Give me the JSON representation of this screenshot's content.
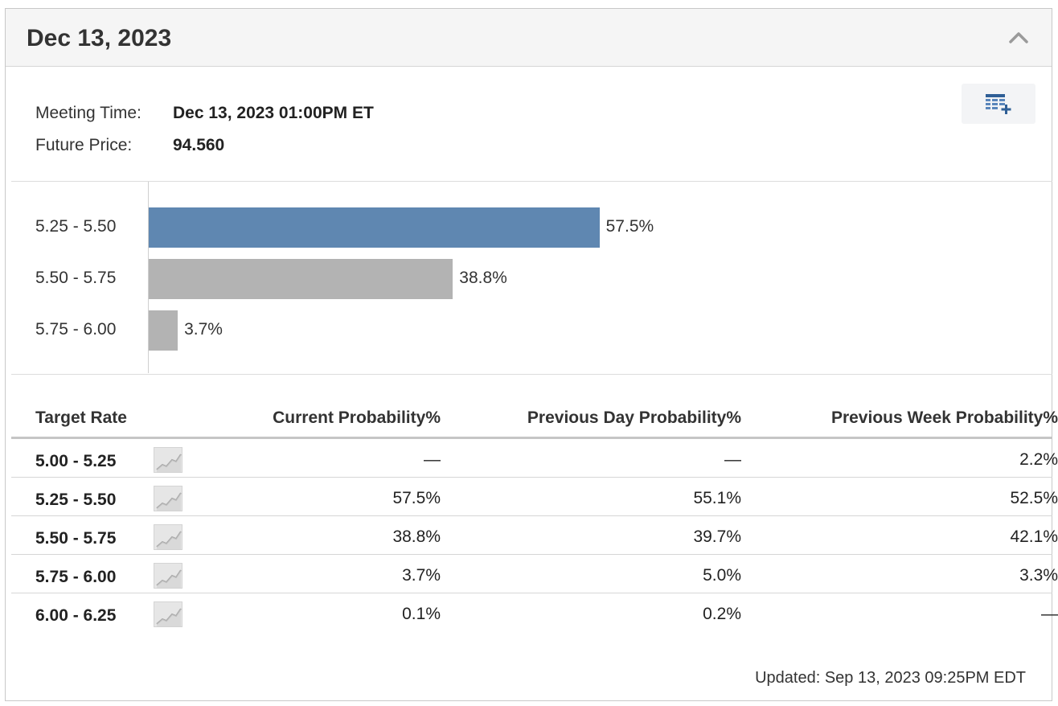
{
  "header": {
    "title": "Dec 13, 2023"
  },
  "meeting": {
    "time_label": "Meeting Time:",
    "time_value": "Dec 13, 2023 01:00PM ET",
    "price_label": "Future Price:",
    "price_value": "94.560"
  },
  "chart_data": {
    "type": "bar",
    "orientation": "horizontal",
    "categories": [
      "5.25 - 5.50",
      "5.50 - 5.75",
      "5.75 - 6.00"
    ],
    "values": [
      57.5,
      38.8,
      3.7
    ],
    "value_labels": [
      "57.5%",
      "38.8%",
      "3.7%"
    ],
    "xlim": [
      0,
      100
    ],
    "colors": [
      "#5f87b1",
      "#b3b3b3",
      "#b3b3b3"
    ],
    "title": "",
    "xlabel": "",
    "ylabel": ""
  },
  "table": {
    "headers": [
      "Target Rate",
      "Current Probability%",
      "Previous Day Probability%",
      "Previous Week Probability%"
    ],
    "rows": [
      {
        "rate": "5.00 - 5.25",
        "current": "—",
        "prev_day": "—",
        "prev_week": "2.2%"
      },
      {
        "rate": "5.25 - 5.50",
        "current": "57.5%",
        "prev_day": "55.1%",
        "prev_week": "52.5%"
      },
      {
        "rate": "5.50 - 5.75",
        "current": "38.8%",
        "prev_day": "39.7%",
        "prev_week": "42.1%"
      },
      {
        "rate": "5.75 - 6.00",
        "current": "3.7%",
        "prev_day": "5.0%",
        "prev_week": "3.3%"
      },
      {
        "rate": "6.00 - 6.25",
        "current": "0.1%",
        "prev_day": "0.2%",
        "prev_week": "—"
      }
    ]
  },
  "footer": {
    "updated": "Updated: Sep 13, 2023 09:25PM EDT"
  },
  "icons": {
    "collapse": "chevron-up-icon",
    "export": "table-add-icon",
    "sparkline": "sparkline-chart-icon"
  }
}
